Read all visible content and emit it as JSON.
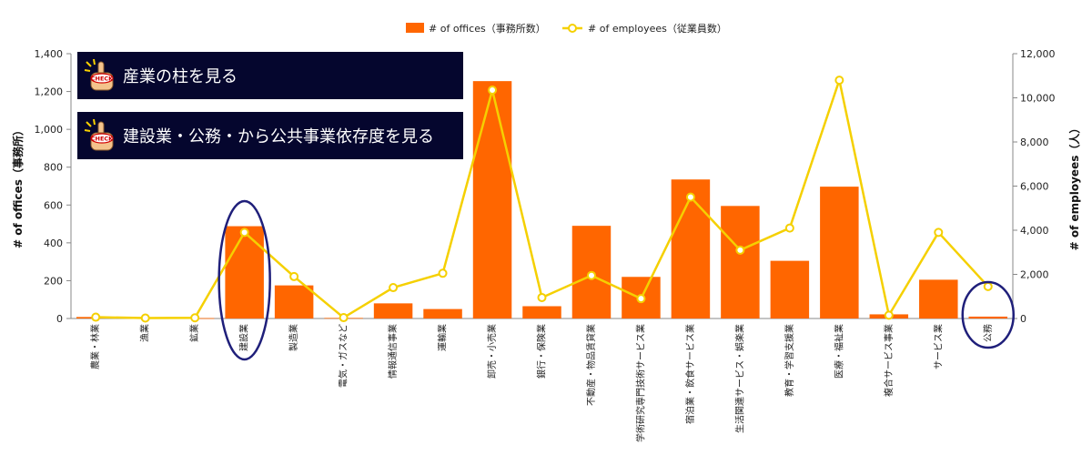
{
  "legend": {
    "bar_label": "# of offices（事務所数）",
    "line_label": "# of employees（従業員数）"
  },
  "buttons": [
    {
      "label": "産業の柱を見る",
      "icon": "pointing-hand-check-icon"
    },
    {
      "label": "建設業・公務・から公共事業依存度を見る",
      "icon": "pointing-hand-check-icon"
    }
  ],
  "colors": {
    "bar": "#ff6600",
    "line": "#f5d000",
    "highlight": "#1f1f7a",
    "panel": "#05062e"
  },
  "chart_data": {
    "type": "bar",
    "categories": [
      "農業・林業",
      "漁業",
      "鉱業",
      "建設業",
      "製造業",
      "電気・ガスなど",
      "情報通信事業",
      "運輸業",
      "卸売・小売業",
      "銀行・保険業",
      "不動産・物品賃貸業",
      "学術研究専門技術サービス業",
      "宿泊業・飲食サービス業",
      "生活関連サービス・娯楽業",
      "教育・学習支援業",
      "医療・福祉業",
      "複合サービス事業",
      "サービス業",
      "公務"
    ],
    "series": [
      {
        "name": "# of offices（事務所数）",
        "type": "bar",
        "axis": "left",
        "values": [
          8,
          3,
          2,
          488,
          175,
          3,
          80,
          50,
          1255,
          65,
          490,
          220,
          735,
          595,
          305,
          697,
          22,
          205,
          10
        ]
      },
      {
        "name": "# of employees（従業員数）",
        "type": "line",
        "axis": "right",
        "values": [
          60,
          20,
          30,
          3900,
          1900,
          40,
          1400,
          2050,
          10350,
          950,
          1950,
          900,
          5500,
          3100,
          4100,
          10800,
          150,
          3900,
          1450
        ]
      }
    ],
    "ylabel": "# of offices（事務所）",
    "y2label": "# of employees（人）",
    "ylim": [
      0,
      1400
    ],
    "y2lim": [
      0,
      12000
    ],
    "yticks": [
      "0",
      "200",
      "400",
      "600",
      "800",
      "1,000",
      "1,200",
      "1,400"
    ],
    "y2ticks": [
      "0",
      "2,000",
      "4,000",
      "6,000",
      "8,000",
      "10,000",
      "12,000"
    ],
    "highlighted_categories": [
      "建設業",
      "公務"
    ],
    "legend_position": "top-center",
    "grid": false
  }
}
